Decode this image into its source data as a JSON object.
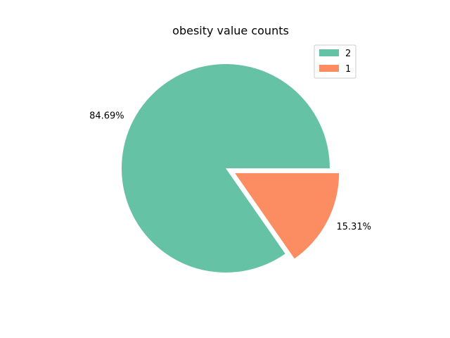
{
  "chart_data": {
    "type": "pie",
    "title": "obesity value counts",
    "labels": [
      "2",
      "1"
    ],
    "values": [
      84.69,
      15.31
    ],
    "value_labels": [
      "84.69%",
      "15.31%"
    ],
    "explode": [
      0,
      0.1
    ],
    "colors": [
      "#66c2a5",
      "#fc8d62"
    ],
    "legend_placement": "top-right"
  }
}
